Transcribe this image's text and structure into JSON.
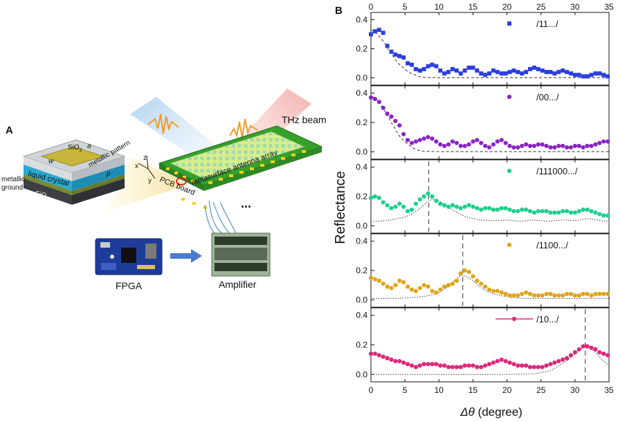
{
  "panel_a": {
    "label": "A",
    "thz_beam": "THz beam",
    "metasurface": "metasurface antenna array",
    "pcb": "PCB board",
    "axis_x": "x",
    "axis_y": "y",
    "axis_z": "z",
    "sio2_top": "SiO",
    "sio2_sub": "2",
    "sio2_bottom": "SiO",
    "dim_w": "w",
    "dim_a": "a",
    "dim_p": "p",
    "metallic_pattern": "metallic pattern",
    "liquid_crystal": "liquid crystal",
    "metallic_ground_1": "metallic",
    "metallic_ground_2": "ground",
    "ellipsis": "...",
    "fpga": "FPGA",
    "amplifier": "Amplifier"
  },
  "panel_b": {
    "label": "B",
    "ylabel": "Reflectance",
    "xlabel_symbol": "Δθ",
    "xlabel_unit": " (degree)"
  },
  "chart_data": [
    {
      "type": "scatter",
      "legend": "/11.../",
      "marker": "square",
      "color": "#2a3fe0",
      "xlim": [
        0,
        35
      ],
      "ylim": [
        -0.05,
        0.45
      ],
      "yticks": [
        "0.0",
        "0.2",
        "0.4"
      ],
      "top_xticks": [
        "0",
        "5",
        "10",
        "15",
        "20",
        "25",
        "30",
        "35"
      ],
      "x": [
        0,
        0.6,
        1.2,
        1.8,
        2.4,
        3.0,
        3.6,
        4.2,
        4.8,
        5.4,
        6.0,
        6.6,
        7.2,
        7.8,
        8.4,
        9.0,
        9.6,
        10.2,
        10.8,
        11.4,
        12.0,
        12.6,
        13.2,
        13.8,
        14.4,
        15.0,
        15.6,
        16.2,
        16.8,
        17.4,
        18.0,
        18.6,
        19.2,
        19.8,
        20.4,
        21.0,
        21.6,
        22.2,
        22.8,
        23.4,
        24.0,
        24.6,
        25.2,
        25.8,
        26.4,
        27.0,
        27.6,
        28.2,
        28.8,
        29.4,
        30.0,
        30.6,
        31.2,
        31.8,
        32.4,
        33.0,
        33.6,
        34.2,
        34.8
      ],
      "y": [
        0.3,
        0.32,
        0.33,
        0.31,
        0.22,
        0.18,
        0.16,
        0.15,
        0.14,
        0.1,
        0.09,
        0.06,
        0.05,
        0.06,
        0.08,
        0.09,
        0.08,
        0.05,
        0.03,
        0.04,
        0.06,
        0.05,
        0.03,
        0.05,
        0.07,
        0.07,
        0.05,
        0.03,
        0.02,
        0.03,
        0.05,
        0.04,
        0.03,
        0.03,
        0.04,
        0.05,
        0.04,
        0.03,
        0.04,
        0.06,
        0.07,
        0.06,
        0.05,
        0.04,
        0.04,
        0.03,
        0.04,
        0.05,
        0.04,
        0.03,
        0.02,
        0.02,
        0.01,
        0.01,
        0.02,
        0.03,
        0.03,
        0.02,
        0.01
      ],
      "guide_curve": {
        "x": [
          0,
          0.5,
          1,
          1.5,
          2,
          2.5,
          3,
          3.5,
          4,
          4.5,
          5,
          5.5,
          6,
          6.5,
          7,
          7.5,
          8,
          9,
          10,
          12,
          15,
          20,
          25,
          30,
          35
        ],
        "y": [
          0.33,
          0.32,
          0.3,
          0.27,
          0.24,
          0.2,
          0.17,
          0.13,
          0.1,
          0.08,
          0.06,
          0.04,
          0.03,
          0.02,
          0.01,
          0.005,
          0.003,
          0.002,
          0.001,
          0.001,
          0.001,
          0.001,
          0.001,
          0.001,
          0.001
        ]
      },
      "dashed_line_x": null
    },
    {
      "type": "scatter",
      "legend": "/00.../",
      "marker": "circle",
      "color": "#8a24c4",
      "xlim": [
        0,
        35
      ],
      "ylim": [
        -0.05,
        0.45
      ],
      "yticks": [
        "0.0",
        "0.2",
        "0.4"
      ],
      "x": [
        0,
        0.6,
        1.2,
        1.8,
        2.4,
        3.0,
        3.6,
        4.2,
        4.8,
        5.4,
        6.0,
        6.6,
        7.2,
        7.8,
        8.4,
        9.0,
        9.6,
        10.2,
        10.8,
        11.4,
        12.0,
        12.6,
        13.2,
        13.8,
        14.4,
        15.0,
        15.6,
        16.2,
        16.8,
        17.4,
        18.0,
        18.6,
        19.2,
        19.8,
        20.4,
        21.0,
        21.6,
        22.2,
        22.8,
        23.4,
        24.0,
        24.6,
        25.2,
        25.8,
        26.4,
        27.0,
        27.6,
        28.2,
        28.8,
        29.4,
        30.0,
        30.6,
        31.2,
        31.8,
        32.4,
        33.0,
        33.6,
        34.2,
        34.8
      ],
      "y": [
        0.37,
        0.36,
        0.34,
        0.3,
        0.26,
        0.24,
        0.21,
        0.18,
        0.12,
        0.08,
        0.06,
        0.07,
        0.08,
        0.09,
        0.1,
        0.09,
        0.07,
        0.05,
        0.04,
        0.05,
        0.07,
        0.06,
        0.04,
        0.04,
        0.05,
        0.07,
        0.08,
        0.06,
        0.04,
        0.03,
        0.05,
        0.07,
        0.08,
        0.06,
        0.04,
        0.03,
        0.03,
        0.04,
        0.05,
        0.04,
        0.04,
        0.05,
        0.05,
        0.04,
        0.03,
        0.03,
        0.04,
        0.04,
        0.03,
        0.03,
        0.04,
        0.04,
        0.03,
        0.04,
        0.04,
        0.05,
        0.06,
        0.07,
        0.07
      ],
      "guide_curve": {
        "x": [
          0,
          0.5,
          1,
          1.5,
          2,
          2.5,
          3,
          3.5,
          4,
          4.5,
          5,
          5.5,
          6,
          6.5,
          7,
          7.5,
          8,
          9,
          10,
          12,
          15,
          20,
          25,
          30,
          35
        ],
        "y": [
          0.38,
          0.37,
          0.35,
          0.32,
          0.28,
          0.24,
          0.2,
          0.16,
          0.12,
          0.09,
          0.07,
          0.05,
          0.03,
          0.02,
          0.01,
          0.005,
          0.003,
          0.002,
          0.001,
          0.001,
          0.001,
          0.001,
          0.001,
          0.001,
          0.001
        ]
      },
      "dashed_line_x": null
    },
    {
      "type": "scatter",
      "legend": "/111000.../",
      "marker": "circle",
      "color": "#1fcf8c",
      "xlim": [
        0,
        35
      ],
      "ylim": [
        -0.05,
        0.45
      ],
      "yticks": [
        "0.0",
        "0.2",
        "0.4"
      ],
      "x": [
        0,
        0.6,
        1.2,
        1.8,
        2.4,
        3.0,
        3.6,
        4.2,
        4.8,
        5.4,
        6.0,
        6.6,
        7.2,
        7.8,
        8.4,
        9.0,
        9.6,
        10.2,
        10.8,
        11.4,
        12.0,
        12.6,
        13.2,
        13.8,
        14.4,
        15.0,
        15.6,
        16.2,
        16.8,
        17.4,
        18.0,
        18.6,
        19.2,
        19.8,
        20.4,
        21.0,
        21.6,
        22.2,
        22.8,
        23.4,
        24.0,
        24.6,
        25.2,
        25.8,
        26.4,
        27.0,
        27.6,
        28.2,
        28.8,
        29.4,
        30.0,
        30.6,
        31.2,
        31.8,
        32.4,
        33.0,
        33.6,
        34.2,
        34.8
      ],
      "y": [
        0.19,
        0.2,
        0.19,
        0.16,
        0.14,
        0.12,
        0.13,
        0.15,
        0.13,
        0.1,
        0.11,
        0.15,
        0.18,
        0.2,
        0.22,
        0.2,
        0.17,
        0.15,
        0.14,
        0.13,
        0.14,
        0.13,
        0.12,
        0.13,
        0.14,
        0.13,
        0.12,
        0.11,
        0.12,
        0.12,
        0.11,
        0.11,
        0.12,
        0.12,
        0.11,
        0.1,
        0.1,
        0.11,
        0.11,
        0.1,
        0.09,
        0.1,
        0.1,
        0.1,
        0.09,
        0.09,
        0.09,
        0.1,
        0.1,
        0.09,
        0.09,
        0.1,
        0.11,
        0.11,
        0.1,
        0.09,
        0.08,
        0.07,
        0.07
      ],
      "guide_curve": {
        "x": [
          0,
          1,
          2,
          3,
          4,
          5,
          6,
          7,
          8,
          8.5,
          9,
          10,
          11,
          12,
          13,
          14,
          15,
          16,
          18,
          20,
          22,
          24,
          26,
          28,
          30,
          32,
          34,
          35
        ],
        "y": [
          0.03,
          0.03,
          0.035,
          0.04,
          0.05,
          0.06,
          0.08,
          0.11,
          0.15,
          0.17,
          0.18,
          0.17,
          0.14,
          0.11,
          0.08,
          0.06,
          0.05,
          0.04,
          0.035,
          0.04,
          0.03,
          0.04,
          0.03,
          0.04,
          0.035,
          0.05,
          0.035,
          0.03
        ]
      },
      "dashed_line_x": 8.5
    },
    {
      "type": "scatter",
      "legend": "/1100.../",
      "marker": "circle",
      "color": "#e0a41c",
      "xlim": [
        0,
        35
      ],
      "ylim": [
        -0.05,
        0.45
      ],
      "yticks": [
        "0.0",
        "0.2",
        "0.4"
      ],
      "x": [
        0,
        0.6,
        1.2,
        1.8,
        2.4,
        3.0,
        3.6,
        4.2,
        4.8,
        5.4,
        6.0,
        6.6,
        7.2,
        7.8,
        8.4,
        9.0,
        9.6,
        10.2,
        10.8,
        11.4,
        12.0,
        12.6,
        13.2,
        13.8,
        14.4,
        15.0,
        15.6,
        16.2,
        16.8,
        17.4,
        18.0,
        18.6,
        19.2,
        19.8,
        20.4,
        21.0,
        21.6,
        22.2,
        22.8,
        23.4,
        24.0,
        24.6,
        25.2,
        25.8,
        26.4,
        27.0,
        27.6,
        28.2,
        28.8,
        29.4,
        30.0,
        30.6,
        31.2,
        31.8,
        32.4,
        33.0,
        33.6,
        34.2,
        34.8
      ],
      "y": [
        0.15,
        0.14,
        0.13,
        0.11,
        0.09,
        0.08,
        0.1,
        0.13,
        0.12,
        0.09,
        0.07,
        0.06,
        0.08,
        0.1,
        0.09,
        0.06,
        0.05,
        0.07,
        0.09,
        0.1,
        0.11,
        0.13,
        0.18,
        0.2,
        0.19,
        0.16,
        0.13,
        0.11,
        0.09,
        0.07,
        0.06,
        0.06,
        0.05,
        0.04,
        0.03,
        0.03,
        0.03,
        0.04,
        0.05,
        0.04,
        0.03,
        0.03,
        0.03,
        0.04,
        0.04,
        0.03,
        0.03,
        0.03,
        0.04,
        0.04,
        0.03,
        0.03,
        0.04,
        0.04,
        0.03,
        0.04,
        0.04,
        0.04,
        0.04
      ],
      "guide_curve": {
        "x": [
          0,
          2,
          4,
          6,
          8,
          9,
          10,
          11,
          12,
          13,
          13.5,
          14,
          15,
          16,
          17,
          18,
          19,
          20,
          22,
          25,
          30,
          35
        ],
        "y": [
          0.01,
          0.01,
          0.01,
          0.015,
          0.025,
          0.035,
          0.05,
          0.08,
          0.12,
          0.16,
          0.17,
          0.16,
          0.13,
          0.09,
          0.06,
          0.04,
          0.03,
          0.02,
          0.01,
          0.01,
          0.01,
          0.01
        ]
      },
      "dashed_line_x": 13.5
    },
    {
      "type": "line",
      "legend": "/10.../",
      "marker": "circle",
      "color": "#e0267a",
      "xlim": [
        0,
        35
      ],
      "ylim": [
        -0.05,
        0.45
      ],
      "yticks": [
        "0.0",
        "0.2",
        "0.4"
      ],
      "bottom_xticks": [
        "0",
        "5",
        "10",
        "15",
        "20",
        "25",
        "30",
        "35"
      ],
      "x": [
        0,
        0.6,
        1.2,
        1.8,
        2.4,
        3.0,
        3.6,
        4.2,
        4.8,
        5.4,
        6.0,
        6.6,
        7.2,
        7.8,
        8.4,
        9.0,
        9.6,
        10.2,
        10.8,
        11.4,
        12.0,
        12.6,
        13.2,
        13.8,
        14.4,
        15.0,
        15.6,
        16.2,
        16.8,
        17.4,
        18.0,
        18.6,
        19.2,
        19.8,
        20.4,
        21.0,
        21.6,
        22.2,
        22.8,
        23.4,
        24.0,
        24.6,
        25.2,
        25.8,
        26.4,
        27.0,
        27.6,
        28.2,
        28.8,
        29.4,
        30.0,
        30.6,
        31.2,
        31.8,
        32.4,
        33.0,
        33.6,
        34.2,
        34.8
      ],
      "y": [
        0.14,
        0.14,
        0.13,
        0.12,
        0.11,
        0.1,
        0.09,
        0.09,
        0.08,
        0.07,
        0.06,
        0.05,
        0.06,
        0.07,
        0.07,
        0.07,
        0.07,
        0.06,
        0.06,
        0.05,
        0.05,
        0.05,
        0.05,
        0.06,
        0.06,
        0.06,
        0.05,
        0.05,
        0.06,
        0.07,
        0.08,
        0.09,
        0.1,
        0.09,
        0.08,
        0.07,
        0.06,
        0.06,
        0.06,
        0.05,
        0.05,
        0.05,
        0.05,
        0.06,
        0.07,
        0.08,
        0.09,
        0.1,
        0.11,
        0.13,
        0.15,
        0.17,
        0.19,
        0.19,
        0.18,
        0.17,
        0.15,
        0.14,
        0.13
      ],
      "guide_curve": {
        "x": [
          0,
          5,
          10,
          15,
          20,
          24,
          26,
          27,
          28,
          29,
          30,
          31,
          31.5,
          32,
          33,
          34,
          35
        ],
        "y": [
          0,
          0,
          0,
          0,
          0,
          0.005,
          0.02,
          0.04,
          0.07,
          0.1,
          0.14,
          0.18,
          0.2,
          0.19,
          0.15,
          0.1,
          0.06
        ]
      },
      "dashed_line_x": 31.5
    }
  ]
}
